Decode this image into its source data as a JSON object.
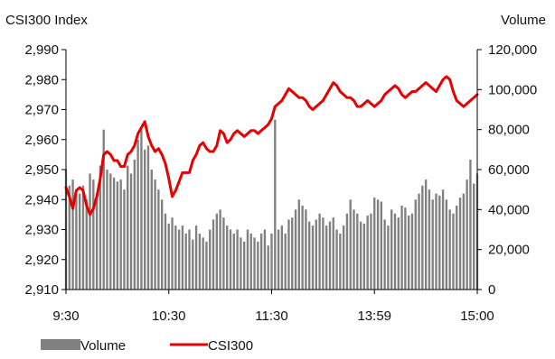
{
  "chart_data": {
    "type": "bar+line",
    "left_axis_title": "CSI300 Index",
    "right_axis_title": "Volume",
    "left_axis": {
      "min": 2910,
      "max": 2990,
      "ticks": [
        {
          "value": 2990,
          "label": "2,990"
        },
        {
          "value": 2980,
          "label": "2,980"
        },
        {
          "value": 2970,
          "label": "2,970"
        },
        {
          "value": 2960,
          "label": "2,960"
        },
        {
          "value": 2950,
          "label": "2,950"
        },
        {
          "value": 2940,
          "label": "2,940"
        },
        {
          "value": 2930,
          "label": "2,930"
        },
        {
          "value": 2920,
          "label": "2,920"
        },
        {
          "value": 2910,
          "label": "2,910"
        }
      ]
    },
    "right_axis": {
      "min": 0,
      "max": 120000,
      "ticks": [
        {
          "value": 120000,
          "label": "120,000"
        },
        {
          "value": 100000,
          "label": "100,000"
        },
        {
          "value": 80000,
          "label": "80,000"
        },
        {
          "value": 60000,
          "label": "60,000"
        },
        {
          "value": 40000,
          "label": "40,000"
        },
        {
          "value": 20000,
          "label": "20,000"
        },
        {
          "value": 0,
          "label": "0"
        }
      ]
    },
    "x_ticks": [
      {
        "index": 0,
        "label": "9:30"
      },
      {
        "index": 30,
        "label": "10:30"
      },
      {
        "index": 60,
        "label": "11:30"
      },
      {
        "index": 90,
        "label": "13:59"
      },
      {
        "index": 120,
        "label": "15:00"
      }
    ],
    "x_count": 121,
    "legend": [
      {
        "label": "Volume",
        "color": "#808080",
        "kind": "bar"
      },
      {
        "label": "CSI300",
        "color": "#e60000",
        "kind": "line"
      }
    ],
    "series": [
      {
        "name": "Volume",
        "kind": "bar",
        "axis": "right",
        "color": "#808080",
        "values": [
          60000,
          52000,
          55000,
          50000,
          48000,
          52000,
          45000,
          58000,
          55000,
          48000,
          62000,
          80000,
          60000,
          58000,
          56000,
          54000,
          55000,
          50000,
          62000,
          58000,
          65000,
          75000,
          80000,
          70000,
          72000,
          60000,
          55000,
          50000,
          45000,
          38000,
          33000,
          36000,
          32000,
          30000,
          32000,
          28000,
          30000,
          25000,
          32000,
          28000,
          26000,
          24000,
          30000,
          35000,
          38000,
          40000,
          36000,
          32000,
          30000,
          28000,
          30000,
          26000,
          24000,
          30000,
          28000,
          26000,
          24000,
          28000,
          30000,
          22000,
          28000,
          85000,
          30000,
          32000,
          28000,
          35000,
          36000,
          40000,
          45000,
          42000,
          40000,
          34000,
          32000,
          35000,
          38000,
          36000,
          32000,
          34000,
          36000,
          30000,
          28000,
          32000,
          38000,
          45000,
          40000,
          38000,
          34000,
          33000,
          37000,
          38000,
          46000,
          45000,
          44000,
          35000,
          32000,
          40000,
          38000,
          36000,
          42000,
          41000,
          37000,
          38000,
          45000,
          48000,
          52000,
          55000,
          50000,
          45000,
          48000,
          47000,
          50000,
          45000,
          40000,
          38000,
          42000,
          46000,
          48000,
          55000,
          65000,
          53000,
          58000
        ]
      },
      {
        "name": "CSI300",
        "kind": "line",
        "axis": "left",
        "color": "#e60000",
        "values": [
          2944,
          2941,
          2937,
          2943,
          2944,
          2943,
          2938,
          2935,
          2937,
          2941,
          2947,
          2955,
          2956,
          2955,
          2953,
          2953,
          2951,
          2951,
          2955,
          2956,
          2958,
          2962,
          2964,
          2966,
          2961,
          2958,
          2956,
          2957,
          2955,
          2952,
          2947,
          2941,
          2943,
          2946,
          2949,
          2949,
          2949,
          2953,
          2955,
          2958,
          2959,
          2957,
          2956,
          2956,
          2958,
          2963,
          2962,
          2959,
          2960,
          2962,
          2963,
          2962,
          2961,
          2962,
          2963,
          2963,
          2962,
          2963,
          2964,
          2965,
          2967,
          2971,
          2972,
          2973,
          2975,
          2977,
          2976,
          2975,
          2974,
          2974,
          2973,
          2971,
          2970,
          2971,
          2972,
          2973,
          2975,
          2977,
          2979,
          2978,
          2976,
          2975,
          2974,
          2974,
          2973,
          2971,
          2971,
          2972,
          2973,
          2972,
          2971,
          2972,
          2973,
          2975,
          2976,
          2977,
          2978,
          2977,
          2975,
          2974,
          2975,
          2976,
          2976,
          2977,
          2978,
          2979,
          2978,
          2977,
          2976,
          2978,
          2980,
          2981,
          2980,
          2976,
          2973,
          2972,
          2971,
          2972,
          2973,
          2974,
          2975
        ]
      }
    ]
  }
}
